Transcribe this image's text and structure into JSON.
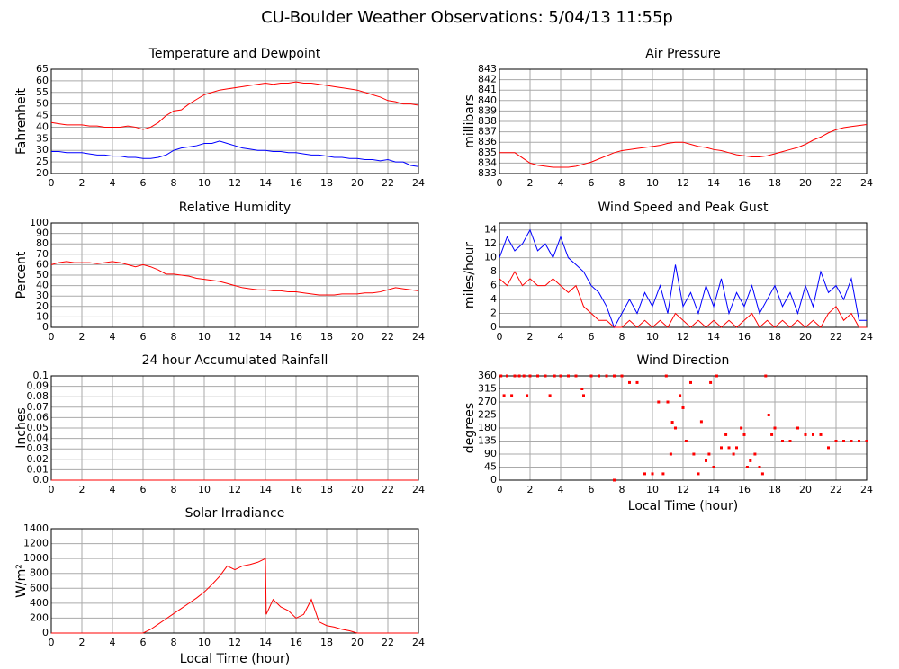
{
  "title": "CU-Boulder Weather Observations: 5/04/13 11:55p",
  "chart_data": [
    {
      "type": "line",
      "title": "Temperature and Dewpoint",
      "ylabel": "Fahrenheit",
      "x": [
        0,
        0.5,
        1,
        1.5,
        2,
        2.5,
        3,
        3.5,
        4,
        4.5,
        5,
        5.5,
        6,
        6.5,
        7,
        7.5,
        8,
        8.5,
        9,
        9.5,
        10,
        10.5,
        11,
        11.5,
        12,
        12.5,
        13,
        13.5,
        14,
        14.5,
        15,
        15.5,
        16,
        16.5,
        17,
        17.5,
        18,
        18.5,
        19,
        19.5,
        20,
        20.5,
        21,
        21.5,
        22,
        22.5,
        23,
        23.5,
        24
      ],
      "series": [
        {
          "color": "#ff0000",
          "values": [
            42,
            41.5,
            41,
            41,
            41,
            40.5,
            40.5,
            40,
            40,
            40,
            40.5,
            40,
            39,
            40,
            42,
            45,
            47,
            47.5,
            50,
            52,
            54,
            55,
            56,
            56.5,
            57,
            57.5,
            58,
            58.5,
            59,
            58.5,
            59,
            59,
            59.5,
            59,
            59,
            58.5,
            58,
            57.5,
            57,
            56.5,
            56,
            55,
            54,
            53,
            51.5,
            51,
            50,
            50,
            49.5
          ]
        },
        {
          "color": "#0000ff",
          "values": [
            29.5,
            29.5,
            29,
            29,
            29,
            28.5,
            28,
            28,
            27.5,
            27.5,
            27,
            27,
            26.5,
            26.5,
            27,
            28,
            30,
            31,
            31.5,
            32,
            33,
            33,
            34,
            33,
            32,
            31,
            30.5,
            30,
            30,
            29.5,
            29.5,
            29,
            29,
            28.5,
            28,
            28,
            27.5,
            27,
            27,
            26.5,
            26.5,
            26,
            26,
            25.5,
            26,
            25,
            25,
            23.5,
            23
          ]
        }
      ],
      "xlim": [
        0,
        24
      ],
      "xticks": [
        0,
        2,
        4,
        6,
        8,
        10,
        12,
        14,
        16,
        18,
        20,
        22,
        24
      ],
      "ylim": [
        20,
        65
      ],
      "yticks": [
        20,
        25,
        30,
        35,
        40,
        45,
        50,
        55,
        60,
        65
      ],
      "grid": true
    },
    {
      "type": "line",
      "title": "Air Pressure",
      "ylabel": "millibars",
      "x": [
        0,
        0.5,
        1,
        1.5,
        2,
        2.5,
        3,
        3.5,
        4,
        4.5,
        5,
        5.5,
        6,
        6.5,
        7,
        7.5,
        8,
        8.5,
        9,
        9.5,
        10,
        10.5,
        11,
        11.5,
        12,
        12.5,
        13,
        13.5,
        14,
        14.5,
        15,
        15.5,
        16,
        16.5,
        17,
        17.5,
        18,
        18.5,
        19,
        19.5,
        20,
        20.5,
        21,
        21.5,
        22,
        22.5,
        23,
        23.5,
        24
      ],
      "series": [
        {
          "color": "#ff0000",
          "values": [
            835,
            835,
            835,
            834.5,
            834,
            833.8,
            833.7,
            833.6,
            833.6,
            833.6,
            833.7,
            833.9,
            834.1,
            834.4,
            834.7,
            835,
            835.2,
            835.3,
            835.4,
            835.5,
            835.6,
            835.7,
            835.9,
            836,
            836,
            835.8,
            835.6,
            835.5,
            835.3,
            835.2,
            835,
            834.8,
            834.7,
            834.6,
            834.6,
            834.7,
            834.9,
            835.1,
            835.3,
            835.5,
            835.8,
            836.2,
            836.5,
            836.9,
            837.2,
            837.4,
            837.5,
            837.6,
            837.7
          ]
        }
      ],
      "xlim": [
        0,
        24
      ],
      "xticks": [
        0,
        2,
        4,
        6,
        8,
        10,
        12,
        14,
        16,
        18,
        20,
        22,
        24
      ],
      "ylim": [
        833,
        843
      ],
      "yticks": [
        833,
        834,
        835,
        836,
        837,
        838,
        839,
        840,
        841,
        842,
        843
      ],
      "grid": true
    },
    {
      "type": "line",
      "title": "Relative Humidity",
      "ylabel": "Percent",
      "x": [
        0,
        0.5,
        1,
        1.5,
        2,
        2.5,
        3,
        3.5,
        4,
        4.5,
        5,
        5.5,
        6,
        6.5,
        7,
        7.5,
        8,
        8.5,
        9,
        9.5,
        10,
        10.5,
        11,
        11.5,
        12,
        12.5,
        13,
        13.5,
        14,
        14.5,
        15,
        15.5,
        16,
        16.5,
        17,
        17.5,
        18,
        18.5,
        19,
        19.5,
        20,
        20.5,
        21,
        21.5,
        22,
        22.5,
        23,
        23.5,
        24
      ],
      "series": [
        {
          "color": "#ff0000",
          "values": [
            60,
            62,
            63,
            62,
            62,
            62,
            61,
            62,
            63,
            62,
            60,
            58,
            60,
            58,
            55,
            51,
            51,
            50,
            49,
            47,
            46,
            45,
            44,
            42,
            40,
            38,
            37,
            36,
            36,
            35,
            35,
            34,
            34,
            33,
            32,
            31,
            31,
            31,
            32,
            32,
            32,
            33,
            33,
            34,
            36,
            38,
            37,
            36,
            35
          ]
        }
      ],
      "xlim": [
        0,
        24
      ],
      "xticks": [
        0,
        2,
        4,
        6,
        8,
        10,
        12,
        14,
        16,
        18,
        20,
        22,
        24
      ],
      "ylim": [
        0,
        100
      ],
      "yticks": [
        0,
        10,
        20,
        30,
        40,
        50,
        60,
        70,
        80,
        90,
        100
      ],
      "grid": true
    },
    {
      "type": "line",
      "title": "Wind Speed and Peak Gust",
      "ylabel": "miles/hour",
      "x": [
        0,
        0.5,
        1,
        1.5,
        2,
        2.5,
        3,
        3.5,
        4,
        4.5,
        5,
        5.5,
        6,
        6.5,
        7,
        7.5,
        8,
        8.5,
        9,
        9.5,
        10,
        10.5,
        11,
        11.5,
        12,
        12.5,
        13,
        13.5,
        14,
        14.5,
        15,
        15.5,
        16,
        16.5,
        17,
        17.5,
        18,
        18.5,
        19,
        19.5,
        20,
        20.5,
        21,
        21.5,
        22,
        22.5,
        23,
        23.5,
        24
      ],
      "series": [
        {
          "color": "#0000ff",
          "values": [
            10,
            13,
            11,
            12,
            14,
            11,
            12,
            10,
            13,
            10,
            9,
            8,
            6,
            5,
            3,
            0,
            2,
            4,
            2,
            5,
            3,
            6,
            2,
            9,
            3,
            5,
            2,
            6,
            3,
            7,
            2,
            5,
            3,
            6,
            2,
            4,
            6,
            3,
            5,
            2,
            6,
            3,
            8,
            5,
            6,
            4,
            7,
            1,
            1
          ]
        },
        {
          "color": "#ff0000",
          "values": [
            7,
            6,
            8,
            6,
            7,
            6,
            6,
            7,
            6,
            5,
            6,
            3,
            2,
            1,
            1,
            0,
            0,
            1,
            0,
            1,
            0,
            1,
            0,
            2,
            1,
            0,
            1,
            0,
            1,
            0,
            1,
            0,
            1,
            2,
            0,
            1,
            0,
            1,
            0,
            1,
            0,
            1,
            0,
            2,
            3,
            1,
            2,
            0,
            0
          ]
        }
      ],
      "xlim": [
        0,
        24
      ],
      "xticks": [
        0,
        2,
        4,
        6,
        8,
        10,
        12,
        14,
        16,
        18,
        20,
        22,
        24
      ],
      "ylim": [
        0,
        15
      ],
      "yticks": [
        0,
        2,
        4,
        6,
        8,
        10,
        12,
        14
      ],
      "grid": true
    },
    {
      "type": "line",
      "title": "24 hour Accumulated Rainfall",
      "ylabel": "Inches",
      "x": [
        0,
        24
      ],
      "series": [
        {
          "color": "#ff0000",
          "values": [
            0,
            0
          ]
        }
      ],
      "xlim": [
        0,
        24
      ],
      "xticks": [
        0,
        2,
        4,
        6,
        8,
        10,
        12,
        14,
        16,
        18,
        20,
        22,
        24
      ],
      "ylim": [
        0,
        0.1
      ],
      "yticks": [
        {
          "value": 0,
          "label": "0.0"
        },
        0.01,
        0.02,
        0.03,
        0.04,
        0.05,
        0.06,
        0.07,
        0.08,
        0.09,
        0.1
      ],
      "grid": true
    },
    {
      "type": "scatter",
      "title": "Wind Direction",
      "ylabel": "degrees",
      "xlabel": "Local Time (hour)",
      "x": [
        0.1,
        0.3,
        0.5,
        0.8,
        1,
        1.3,
        1.6,
        1.8,
        2,
        2.5,
        3,
        3.3,
        3.6,
        4,
        4.5,
        5,
        5.4,
        5.5,
        6,
        6.5,
        7,
        7.5,
        7.5,
        8,
        8.5,
        9,
        9.5,
        10,
        10.4,
        10.7,
        10.9,
        11,
        11.2,
        11.3,
        11.5,
        11.8,
        12,
        12.2,
        12.5,
        12.7,
        13,
        13.2,
        13.5,
        13.7,
        13.8,
        14,
        14.2,
        14.5,
        14.8,
        15,
        15.3,
        15.5,
        15.8,
        16,
        16.2,
        16.4,
        16.7,
        17,
        17.2,
        17.4,
        17.6,
        17.8,
        18,
        18.5,
        19,
        19.5,
        20,
        20.5,
        21,
        21.5,
        22,
        22.5,
        23,
        23.5,
        24
      ],
      "series": [
        {
          "color": "#ff0000",
          "values": [
            360,
            292,
            360,
            292,
            360,
            360,
            360,
            292,
            360,
            360,
            360,
            292,
            360,
            360,
            360,
            360,
            315,
            292,
            360,
            360,
            360,
            0,
            360,
            360,
            337,
            337,
            22,
            22,
            270,
            22,
            360,
            270,
            90,
            200,
            180,
            292,
            250,
            135,
            337,
            90,
            22,
            202,
            67,
            90,
            337,
            45,
            360,
            112,
            157,
            112,
            90,
            112,
            180,
            157,
            45,
            67,
            90,
            45,
            22,
            360,
            225,
            157,
            180,
            135,
            135,
            180,
            157,
            157,
            157,
            112,
            135,
            135,
            135,
            135,
            135
          ]
        }
      ],
      "xlim": [
        0,
        24
      ],
      "xticks": [
        0,
        2,
        4,
        6,
        8,
        10,
        12,
        14,
        16,
        18,
        20,
        22,
        24
      ],
      "ylim": [
        0,
        360
      ],
      "yticks": [
        0,
        45,
        90,
        135,
        180,
        225,
        270,
        315,
        360
      ],
      "grid": true
    },
    {
      "type": "line",
      "title": "Solar Irradiance",
      "ylabel": "W/m²",
      "xlabel": "Local Time (hour)",
      "x": [
        0,
        2,
        4,
        6,
        6.5,
        7,
        7.5,
        8,
        8.5,
        9,
        9.5,
        10,
        10.5,
        11,
        11.5,
        12,
        12.5,
        13,
        13.5,
        14,
        14.05,
        14.5,
        15,
        15.5,
        16,
        16.5,
        17,
        17.5,
        18,
        18.5,
        19,
        19.5,
        20,
        22,
        24
      ],
      "series": [
        {
          "color": "#ff0000",
          "values": [
            0,
            0,
            0,
            0,
            50,
            120,
            190,
            260,
            330,
            400,
            470,
            550,
            650,
            760,
            900,
            850,
            900,
            920,
            950,
            1000,
            250,
            450,
            350,
            300,
            200,
            250,
            450,
            150,
            100,
            80,
            50,
            30,
            0,
            0,
            0
          ]
        }
      ],
      "xlim": [
        0,
        24
      ],
      "xticks": [
        0,
        2,
        4,
        6,
        8,
        10,
        12,
        14,
        16,
        18,
        20,
        22,
        24
      ],
      "ylim": [
        0,
        1400
      ],
      "yticks": [
        0,
        200,
        400,
        600,
        800,
        1000,
        1200,
        1400
      ],
      "grid": true
    }
  ]
}
